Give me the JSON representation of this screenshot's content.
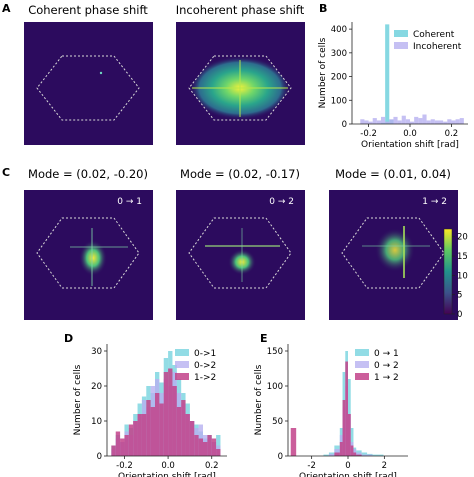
{
  "panels": {
    "a": {
      "letter": "A",
      "title_left": "Coherent phase shift",
      "title_right": "Incoherent phase shift"
    },
    "b": {
      "letter": "B"
    },
    "c": {
      "letter": "C",
      "titles": [
        "Mode = (0.02, -0.20)",
        "Mode = (0.02, -0.17)",
        "Mode = (0.01, 0.04)"
      ],
      "transitions": [
        "0 → 1",
        "0 → 2",
        "1 → 2"
      ]
    },
    "d": {
      "letter": "D"
    },
    "e": {
      "letter": "E"
    }
  },
  "colors": {
    "map_background": "#2c0b5e",
    "coherent": "#7fd6e0",
    "incoherent": "#b7b0f0",
    "t01": "#7fd6e0",
    "t02": "#b7b0f0",
    "t12": "#c2428a"
  },
  "colorbar": {
    "ticks": [
      "0",
      "5",
      "10",
      "15",
      "20"
    ]
  },
  "chart_data": [
    {
      "id": "B",
      "type": "bar",
      "title": "",
      "xlabel": "Orientation shift [rad]",
      "ylabel": "Number of cells",
      "xlim": [
        -0.28,
        0.28
      ],
      "ylim": [
        0,
        430
      ],
      "xticks": [
        "-0.2",
        "0.0",
        "0.2"
      ],
      "yticks": [
        "0",
        "100",
        "200",
        "300",
        "400"
      ],
      "legend": "top-right",
      "bin_edges": [
        -0.24,
        -0.22,
        -0.2,
        -0.18,
        -0.16,
        -0.14,
        -0.12,
        -0.1,
        -0.08,
        -0.06,
        -0.04,
        -0.02,
        0.0,
        0.02,
        0.04,
        0.06,
        0.08,
        0.1,
        0.12,
        0.14,
        0.16,
        0.18,
        0.2,
        0.22,
        0.24,
        0.26
      ],
      "series": [
        {
          "name": "Coherent",
          "values": [
            0,
            0,
            0,
            0,
            0,
            5,
            420,
            18,
            0,
            0,
            0,
            0,
            0,
            0,
            0,
            0,
            0,
            0,
            0,
            0,
            0,
            0,
            0,
            0,
            0
          ]
        },
        {
          "name": "Incoherent",
          "values": [
            20,
            15,
            10,
            25,
            15,
            30,
            10,
            20,
            30,
            15,
            35,
            20,
            10,
            30,
            25,
            40,
            15,
            20,
            15,
            15,
            10,
            20,
            15,
            20,
            25
          ]
        }
      ]
    },
    {
      "id": "D",
      "type": "bar",
      "title": "",
      "xlabel": "Orientation shift [rad]",
      "ylabel": "Number of cells",
      "xlim": [
        -0.28,
        0.27
      ],
      "ylim": [
        0,
        32
      ],
      "xticks": [
        "-0.2",
        "0.0",
        "0.2"
      ],
      "yticks": [
        "0",
        "10",
        "20",
        "30"
      ],
      "legend": "top-right",
      "bin_edges": [
        -0.26,
        -0.24,
        -0.22,
        -0.2,
        -0.18,
        -0.16,
        -0.14,
        -0.12,
        -0.1,
        -0.08,
        -0.06,
        -0.04,
        -0.02,
        0.0,
        0.02,
        0.04,
        0.06,
        0.08,
        0.1,
        0.12,
        0.14,
        0.16,
        0.18,
        0.2,
        0.22,
        0.24
      ],
      "series": [
        {
          "name": "0->1",
          "values": [
            3,
            6,
            4,
            9,
            8,
            12,
            15,
            17,
            20,
            18,
            24,
            21,
            28,
            30,
            26,
            22,
            18,
            15,
            10,
            9,
            7,
            5,
            6,
            4,
            6
          ]
        },
        {
          "name": "0->2",
          "values": [
            2,
            5,
            4,
            7,
            6,
            10,
            12,
            16,
            14,
            20,
            22,
            18,
            22,
            20,
            24,
            18,
            15,
            12,
            10,
            8,
            9,
            6,
            5,
            4,
            3
          ]
        },
        {
          "name": "1->2",
          "values": [
            3,
            7,
            5,
            6,
            9,
            10,
            12,
            12,
            16,
            14,
            18,
            15,
            24,
            25,
            20,
            14,
            16,
            12,
            10,
            6,
            5,
            4,
            6,
            5,
            2
          ]
        }
      ]
    },
    {
      "id": "E",
      "type": "bar",
      "title": "",
      "xlabel": "Orientation shift [rad]",
      "ylabel": "Number of cells",
      "xlim": [
        -3.3,
        3.3
      ],
      "ylim": [
        0,
        160
      ],
      "xticks": [
        "-2",
        "0",
        "2"
      ],
      "yticks": [
        "0",
        "50",
        "100",
        "150"
      ],
      "legend": "top-right",
      "bin_edges": [
        -3.15,
        -2.85,
        -2.55,
        -2.25,
        -1.95,
        -1.65,
        -1.35,
        -1.05,
        -0.75,
        -0.45,
        -0.3,
        -0.15,
        0.0,
        0.15,
        0.3,
        0.45,
        0.75,
        1.05,
        1.35,
        1.65,
        1.95,
        2.25,
        2.55,
        2.85,
        3.15
      ],
      "series": [
        {
          "name": "0 → 1",
          "values": [
            0,
            0,
            0,
            0,
            0,
            0,
            2,
            5,
            15,
            40,
            120,
            150,
            110,
            40,
            12,
            8,
            5,
            3,
            2,
            2,
            0,
            0,
            0,
            0
          ]
        },
        {
          "name": "0 → 2",
          "values": [
            0,
            0,
            0,
            0,
            0,
            0,
            0,
            3,
            10,
            30,
            70,
            100,
            60,
            20,
            10,
            5,
            2,
            2,
            0,
            0,
            0,
            0,
            0,
            0
          ]
        },
        {
          "name": "1 → 2",
          "values": [
            40,
            0,
            0,
            0,
            0,
            0,
            0,
            0,
            5,
            20,
            80,
            135,
            60,
            15,
            5,
            2,
            0,
            0,
            0,
            0,
            0,
            0,
            0,
            0
          ]
        }
      ]
    }
  ]
}
